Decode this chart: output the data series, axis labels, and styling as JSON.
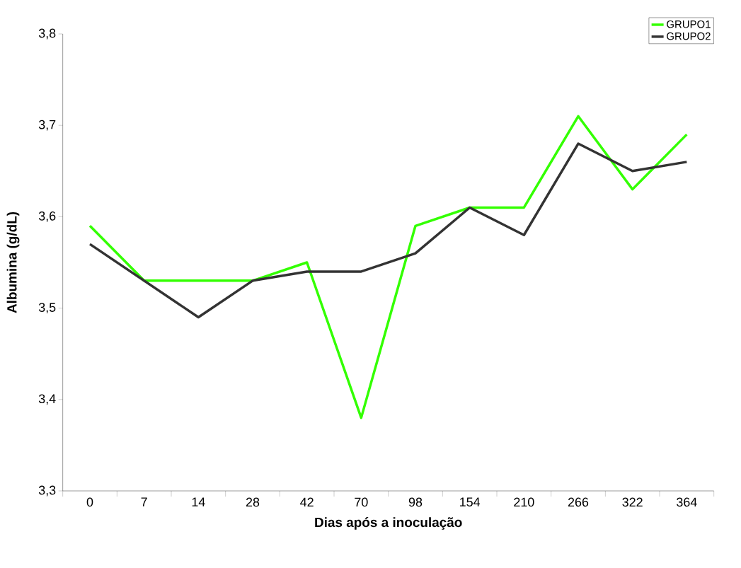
{
  "chart_data": {
    "type": "line",
    "xlabel": "Dias após a inoculação",
    "ylabel": "Albumina (g/dL)",
    "categories": [
      "0",
      "7",
      "14",
      "28",
      "42",
      "70",
      "98",
      "154",
      "210",
      "266",
      "322",
      "364"
    ],
    "series": [
      {
        "name": "GRUPO1",
        "color": "#33ff00",
        "values": [
          3.59,
          3.53,
          3.53,
          3.53,
          3.55,
          3.38,
          3.59,
          3.61,
          3.61,
          3.71,
          3.63,
          3.69
        ]
      },
      {
        "name": "GRUPO2",
        "color": "#333333",
        "values": [
          3.57,
          3.53,
          3.49,
          3.53,
          3.54,
          3.54,
          3.56,
          3.61,
          3.58,
          3.68,
          3.65,
          3.66
        ]
      }
    ],
    "ylim": [
      3.3,
      3.8
    ],
    "yticks": [
      {
        "value": 3.3,
        "label": "3,3"
      },
      {
        "value": 3.4,
        "label": "3,4"
      },
      {
        "value": 3.5,
        "label": "3,5"
      },
      {
        "value": 3.6,
        "label": "3,6"
      },
      {
        "value": 3.7,
        "label": "3,7"
      },
      {
        "value": 3.8,
        "label": "3,8"
      }
    ],
    "legend": "top right",
    "grid": false,
    "marker": "none",
    "line_style": "solid"
  }
}
